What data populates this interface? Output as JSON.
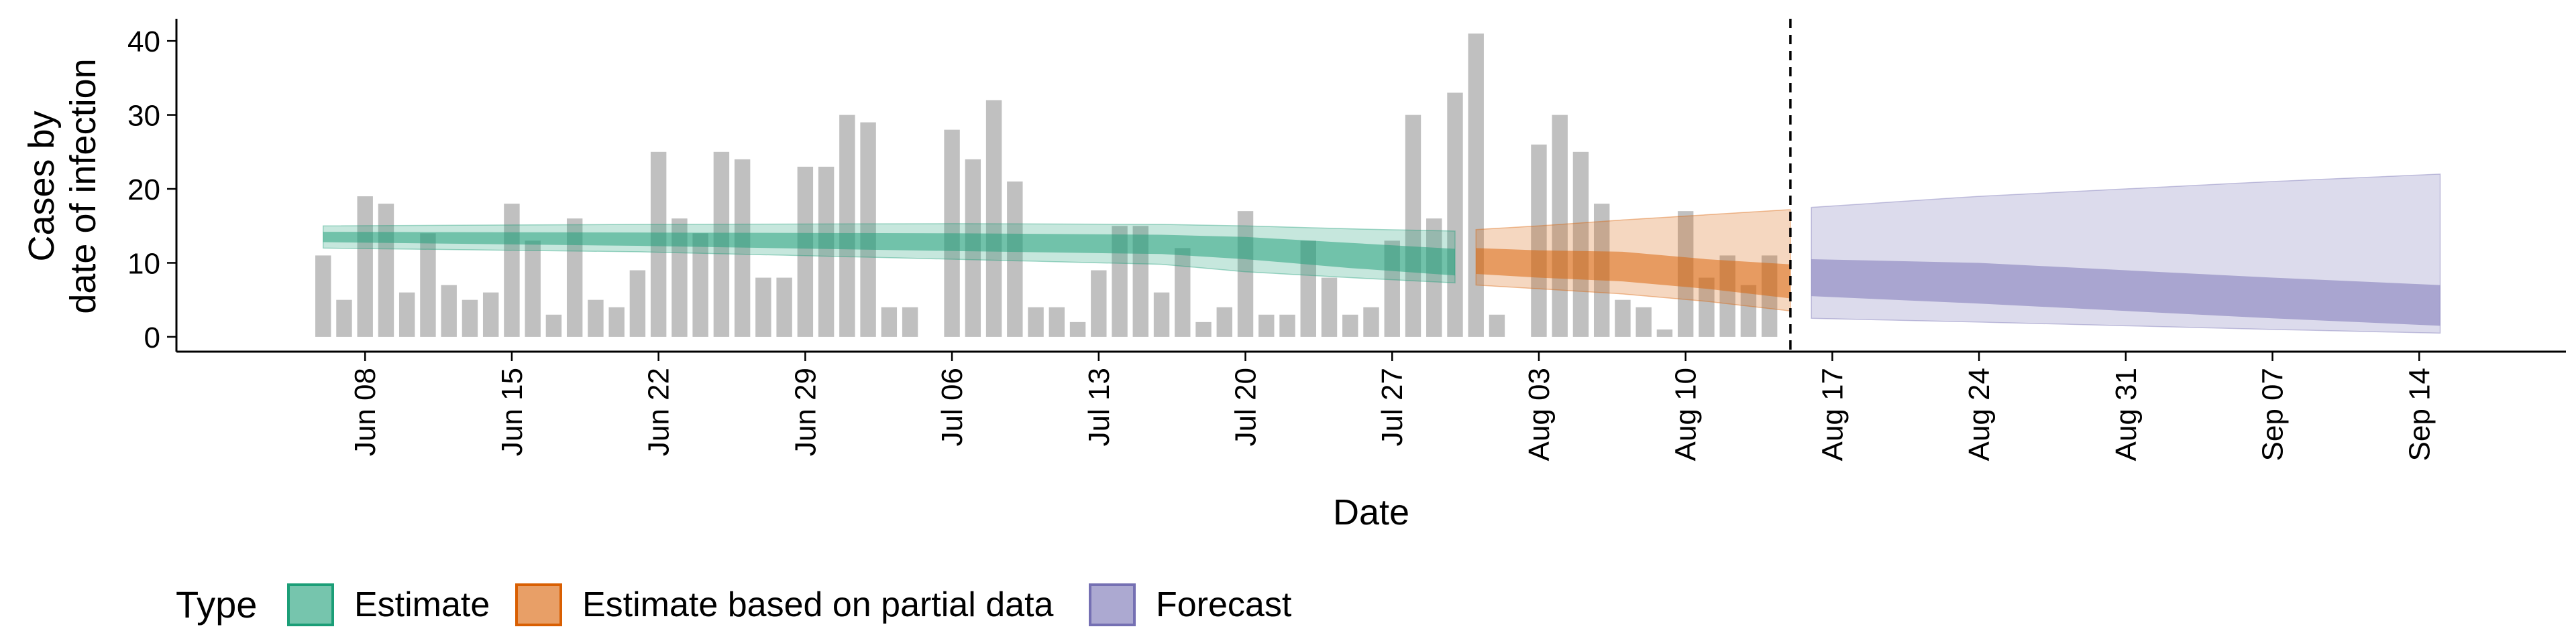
{
  "chart_data": {
    "type": "bar",
    "xlabel": "Date",
    "ylabel_lines": [
      "Cases by",
      "date of infection"
    ],
    "ylim": [
      -2,
      43
    ],
    "y_ticks": [
      0,
      10,
      20,
      30,
      40
    ],
    "x_ticks": [
      "Jun 08",
      "Jun 15",
      "Jun 22",
      "Jun 29",
      "Jul 06",
      "Jul 13",
      "Jul 20",
      "Jul 27",
      "Aug 03",
      "Aug 10",
      "Aug 17",
      "Aug 24",
      "Aug 31",
      "Sep 07",
      "Sep 14"
    ],
    "x_tick_dates": [
      "2020-06-08",
      "2020-06-15",
      "2020-06-22",
      "2020-06-29",
      "2020-07-06",
      "2020-07-13",
      "2020-07-20",
      "2020-07-27",
      "2020-08-03",
      "2020-08-10",
      "2020-08-17",
      "2020-08-24",
      "2020-08-31",
      "2020-09-07",
      "2020-09-14"
    ],
    "xlim": [
      "2020-05-30",
      "2020-09-21"
    ],
    "grid": false,
    "vline_date": "2020-08-15",
    "observed_cases": {
      "start_date": "2020-06-06",
      "values": [
        11,
        5,
        19,
        18,
        6,
        14,
        7,
        5,
        6,
        18,
        13,
        3,
        16,
        5,
        4,
        9,
        25,
        16,
        14,
        25,
        24,
        8,
        8,
        23,
        23,
        30,
        29,
        4,
        4,
        0,
        28,
        24,
        32,
        21,
        4,
        4,
        2,
        9,
        15,
        15,
        6,
        12,
        2,
        4,
        17,
        3,
        3,
        13,
        8,
        3,
        4,
        13,
        30,
        16,
        33,
        41,
        3,
        0,
        26,
        30,
        25,
        18,
        5,
        4,
        1,
        17,
        8,
        11,
        7,
        11
      ]
    },
    "series": [
      {
        "name": "Estimate",
        "color": "#1b9e77",
        "dates": [
          "2020-06-06",
          "2020-06-21",
          "2020-07-06",
          "2020-07-16",
          "2020-07-20",
          "2020-07-25",
          "2020-07-30"
        ],
        "median": [
          13.5,
          13.2,
          12.8,
          12.5,
          12,
          11,
          10
        ],
        "inner": [
          [
            12.8,
            14.2
          ],
          [
            12.3,
            14.1
          ],
          [
            11.6,
            14
          ],
          [
            11.2,
            13.8
          ],
          [
            10.5,
            13.5
          ],
          [
            9.3,
            12.7
          ],
          [
            8.3,
            11.9
          ]
        ],
        "outer": [
          [
            12,
            15
          ],
          [
            11.5,
            15.2
          ],
          [
            10.5,
            15.3
          ],
          [
            9.8,
            15.2
          ],
          [
            8.8,
            15
          ],
          [
            8,
            14.6
          ],
          [
            7.3,
            14.3
          ]
        ]
      },
      {
        "name": "Estimate based on partial data",
        "color": "#d95f02",
        "dates": [
          "2020-07-31",
          "2020-08-03",
          "2020-08-07",
          "2020-08-11",
          "2020-08-15"
        ],
        "median": [
          10.2,
          9.8,
          9.5,
          8.5,
          7
        ],
        "inner": [
          [
            8.5,
            12
          ],
          [
            8,
            11.7
          ],
          [
            7.5,
            11.5
          ],
          [
            6.5,
            10.5
          ],
          [
            5.2,
            9.8
          ]
        ],
        "outer": [
          [
            7,
            14.5
          ],
          [
            6.5,
            15
          ],
          [
            5.8,
            15.8
          ],
          [
            4.8,
            16.5
          ],
          [
            3.5,
            17.2
          ]
        ]
      },
      {
        "name": "Forecast",
        "color": "#7570b3",
        "dates": [
          "2020-08-16",
          "2020-08-24",
          "2020-08-31",
          "2020-09-07",
          "2020-09-15"
        ],
        "median": [
          8,
          7,
          6,
          5,
          4
        ],
        "inner": [
          [
            5.5,
            10.5
          ],
          [
            4.5,
            10
          ],
          [
            3.5,
            9
          ],
          [
            2.5,
            8
          ],
          [
            1.5,
            7
          ]
        ],
        "outer": [
          [
            2.5,
            17.5
          ],
          [
            2,
            19
          ],
          [
            1.5,
            20
          ],
          [
            1,
            21
          ],
          [
            0.5,
            22
          ]
        ]
      }
    ],
    "bar_color": "#bdbdbd",
    "legend": {
      "position": "bottom-left",
      "title": "Type",
      "entries": [
        "Estimate",
        "Estimate based on partial data",
        "Forecast"
      ]
    }
  }
}
